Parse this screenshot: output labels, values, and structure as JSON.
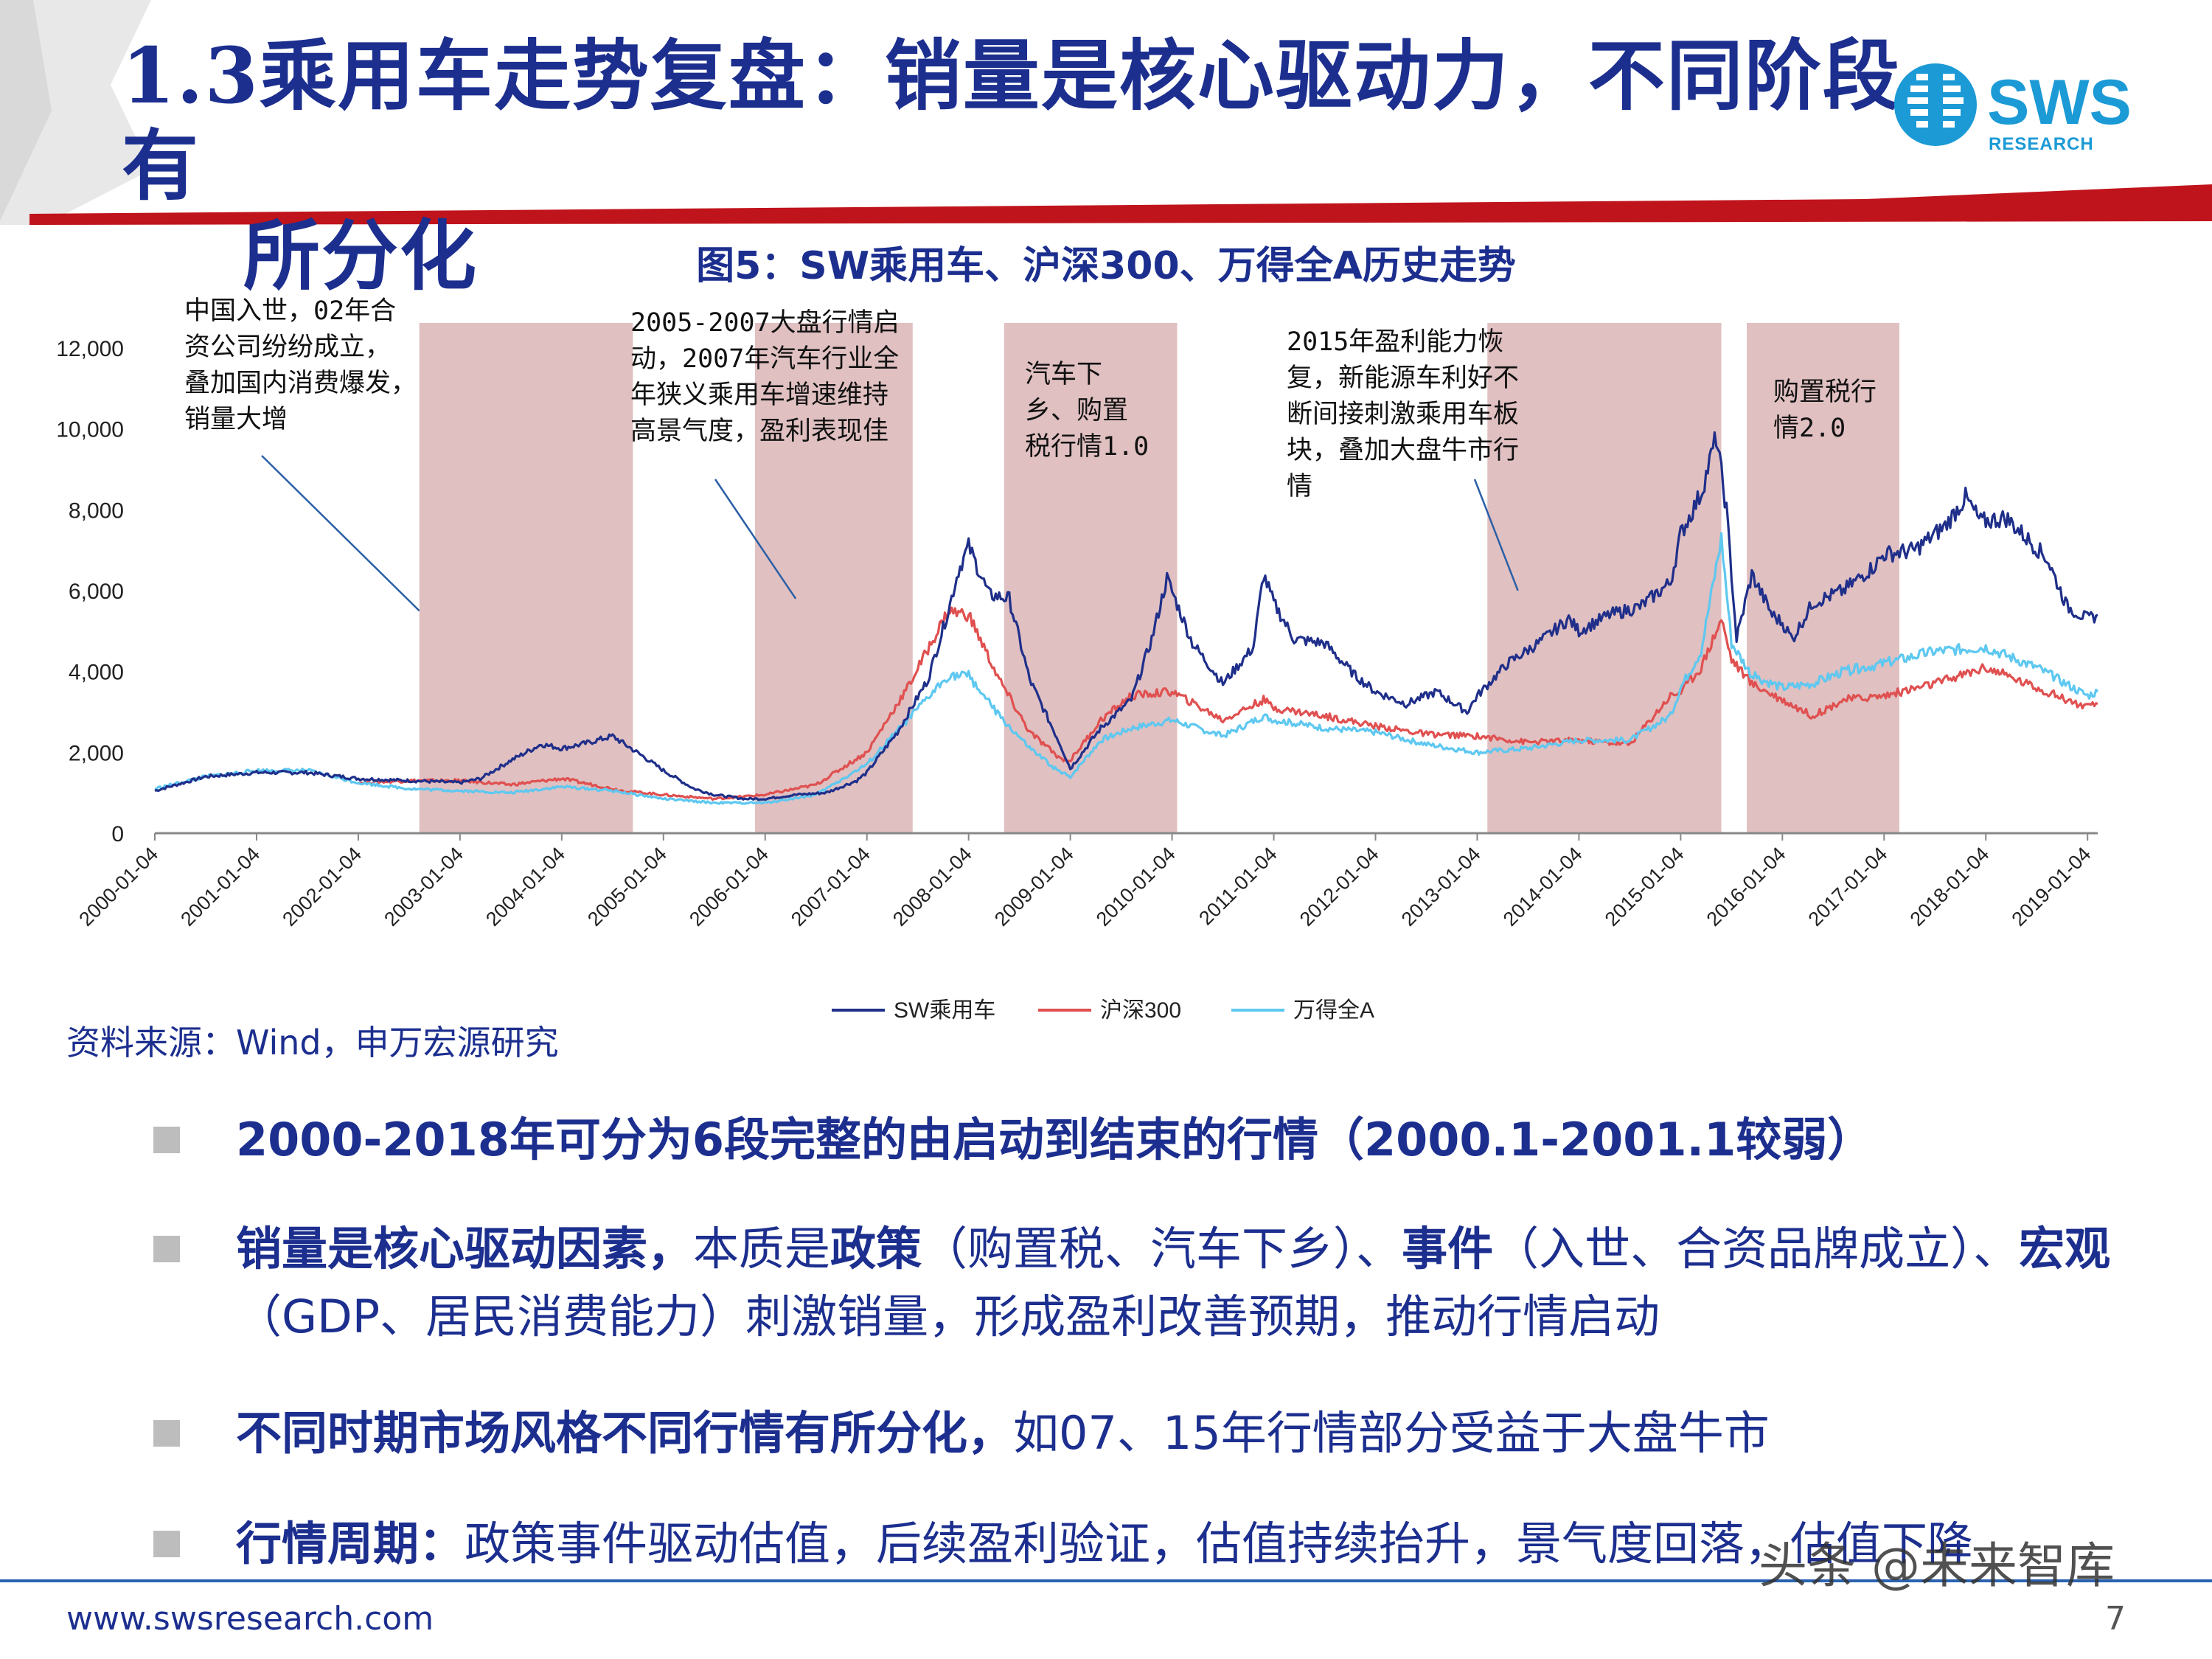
{
  "header": {
    "title_line1": "1.3乘用车走势复盘：销量是核心驱动力，不同阶段有",
    "title_line2": "所分化",
    "brand_colors": {
      "navy": "#1c2f8f",
      "red": "#c0141c",
      "logo_blue": "#1b9ad6"
    }
  },
  "logo": {
    "word": "SWS",
    "sub": "RESEARCH"
  },
  "figure_title": "图5：SW乘用车、沪深300、万得全A历史走势",
  "chart_data": {
    "type": "line",
    "title": "图5：SW乘用车、沪深300、万得全A历史走势",
    "ylim": [
      0,
      12000
    ],
    "y_ticks": [
      "0",
      "2,000",
      "4,000",
      "6,000",
      "8,000",
      "10,000",
      "12,000"
    ],
    "x_ticks": [
      "2000-01-04",
      "2001-01-04",
      "2002-01-04",
      "2003-01-04",
      "2004-01-04",
      "2005-01-04",
      "2006-01-04",
      "2007-01-04",
      "2008-01-04",
      "2009-01-04",
      "2010-01-04",
      "2011-01-04",
      "2012-01-04",
      "2013-01-04",
      "2014-01-04",
      "2015-01-04",
      "2016-01-04",
      "2017-01-04",
      "2018-01-04",
      "2019-01-04"
    ],
    "grid": false,
    "legend_position": "bottom",
    "series": [
      {
        "name": "SW乘用车",
        "color": "#1f2f8a",
        "x": [
          2000.0,
          2000.5,
          2001.0,
          2001.5,
          2002.0,
          2002.5,
          2003.0,
          2003.2,
          2003.5,
          2003.8,
          2004.0,
          2004.2,
          2004.5,
          2004.8,
          2005.0,
          2005.3,
          2005.5,
          2005.8,
          2006.0,
          2006.3,
          2006.6,
          2006.9,
          2007.0,
          2007.3,
          2007.6,
          2007.8,
          2007.9,
          2008.0,
          2008.2,
          2008.4,
          2008.6,
          2008.9,
          2009.0,
          2009.3,
          2009.6,
          2009.8,
          2009.95,
          2010.2,
          2010.5,
          2010.8,
          2010.9,
          2011.0,
          2011.2,
          2011.5,
          2011.8,
          2012.0,
          2012.3,
          2012.6,
          2012.9,
          2013.0,
          2013.3,
          2013.6,
          2013.9,
          2014.0,
          2014.3,
          2014.6,
          2014.9,
          2015.0,
          2015.2,
          2015.35,
          2015.45,
          2015.55,
          2015.7,
          2015.9,
          2016.0,
          2016.1,
          2016.3,
          2016.6,
          2016.9,
          2017.0,
          2017.3,
          2017.6,
          2017.8,
          2017.95,
          2018.2,
          2018.4,
          2018.6,
          2018.8,
          2019.0,
          2019.1
        ],
        "y": [
          1050,
          1400,
          1500,
          1500,
          1350,
          1300,
          1250,
          1350,
          1800,
          2200,
          2100,
          2200,
          2400,
          1900,
          1550,
          1100,
          950,
          850,
          850,
          950,
          1000,
          1300,
          1500,
          2500,
          3800,
          5500,
          6500,
          7100,
          5900,
          5800,
          3800,
          2200,
          1600,
          2600,
          3300,
          4800,
          6300,
          4700,
          3700,
          4600,
          6400,
          5700,
          4800,
          4700,
          3900,
          3500,
          3200,
          3500,
          3000,
          3400,
          4200,
          4700,
          5300,
          5000,
          5400,
          5600,
          6200,
          7400,
          8400,
          9800,
          8000,
          4800,
          6400,
          5400,
          5200,
          4800,
          5700,
          6000,
          6600,
          6900,
          7000,
          7600,
          8300,
          7700,
          7800,
          7300,
          6800,
          5600,
          5300,
          5400
        ]
      },
      {
        "name": "沪深300",
        "color": "#e05050",
        "x": [
          2002.0,
          2002.5,
          2003.0,
          2003.5,
          2004.0,
          2004.3,
          2004.6,
          2005.0,
          2005.5,
          2006.0,
          2006.5,
          2007.0,
          2007.4,
          2007.8,
          2008.0,
          2008.3,
          2008.6,
          2008.9,
          2009.0,
          2009.3,
          2009.6,
          2010.0,
          2010.5,
          2010.9,
          2011.0,
          2011.5,
          2012.0,
          2012.5,
          2013.0,
          2013.5,
          2014.0,
          2014.5,
          2014.9,
          2015.0,
          2015.2,
          2015.4,
          2015.5,
          2015.7,
          2016.0,
          2016.3,
          2016.6,
          2017.0,
          2017.5,
          2018.0,
          2018.5,
          2019.0,
          2019.1
        ],
        "y": [
          1250,
          1300,
          1300,
          1200,
          1350,
          1200,
          1050,
          950,
          850,
          950,
          1200,
          2000,
          3600,
          5500,
          5400,
          3800,
          2500,
          1850,
          1800,
          2800,
          3400,
          3500,
          2800,
          3300,
          3100,
          2900,
          2650,
          2450,
          2400,
          2250,
          2300,
          2200,
          3400,
          3500,
          4100,
          5300,
          4300,
          3700,
          3300,
          2900,
          3300,
          3400,
          3700,
          4100,
          3600,
          3100,
          3200
        ]
      },
      {
        "name": "万得全A",
        "color": "#5ec8f0",
        "x": [
          2000.0,
          2000.5,
          2001.0,
          2001.5,
          2002.0,
          2002.5,
          2003.0,
          2003.5,
          2004.0,
          2004.5,
          2005.0,
          2005.5,
          2006.0,
          2006.5,
          2007.0,
          2007.4,
          2007.8,
          2008.0,
          2008.3,
          2008.6,
          2008.9,
          2009.0,
          2009.3,
          2009.6,
          2010.0,
          2010.5,
          2010.9,
          2011.0,
          2011.5,
          2012.0,
          2012.5,
          2013.0,
          2013.5,
          2014.0,
          2014.5,
          2014.9,
          2015.0,
          2015.2,
          2015.4,
          2015.5,
          2015.7,
          2016.0,
          2016.3,
          2016.6,
          2017.0,
          2017.5,
          2018.0,
          2018.5,
          2019.0,
          2019.1
        ],
        "y": [
          1100,
          1400,
          1550,
          1550,
          1250,
          1100,
          1050,
          1000,
          1150,
          1050,
          850,
          750,
          750,
          950,
          1700,
          2800,
          3900,
          3900,
          2900,
          2100,
          1500,
          1400,
          2300,
          2600,
          2800,
          2400,
          2900,
          2800,
          2600,
          2500,
          2200,
          2000,
          2100,
          2300,
          2300,
          2900,
          3600,
          4500,
          7300,
          4700,
          3900,
          3600,
          3700,
          4000,
          4200,
          4500,
          4600,
          4100,
          3400,
          3500
        ]
      }
    ],
    "highlight_periods": [
      [
        2002.6,
        2004.7
      ],
      [
        2005.9,
        2007.45
      ],
      [
        2008.35,
        2010.05
      ],
      [
        2013.1,
        2015.4
      ],
      [
        2015.65,
        2017.15
      ]
    ],
    "annotations": [
      {
        "text": "中国入世，02年合\n资公司纷纷成立，\n叠加国内消费爆发，\n销量大增",
        "point_x": 2002.6,
        "point_y": 5500
      },
      {
        "text": "2005-2007大盘行情启\n动，2007年汽车行业全\n年狭义乘用车增速维持\n高景气度，盈利表现佳",
        "point_x": 2006.3,
        "point_y": 5800
      },
      {
        "text": "汽车下\n乡、购置\n税行情1.0",
        "point_x": null,
        "point_y": null
      },
      {
        "text": "2015年盈利能力恢\n复，新能源车利好不\n断间接刺激乘用车板\n块，叠加大盘牛市行\n情",
        "point_x": 2013.4,
        "point_y": 6000
      },
      {
        "text": "购置税行\n情2.0",
        "point_x": null,
        "point_y": null
      }
    ]
  },
  "source_note": "资料来源：Wind，申万宏源研究",
  "bullets": [
    {
      "bold": "2000-2018年可分为6段完整的由启动到结束的行情（2000.1-2001.1较弱）",
      "rest": ""
    },
    {
      "bold": "销量是核心驱动因素，",
      "rest": "本质是",
      "bold2": "政策",
      "rest2": "（购置税、汽车下乡）、",
      "bold3": "事件",
      "rest3": "（入世、合资品牌成立）、",
      "bold4": "宏观",
      "rest4": "（GDP、居民消费能力）刺激销量，形成盈利改善预期，推动行情启动"
    },
    {
      "bold": "不同时期市场风格不同行情有所分化，",
      "rest": "如07、15年行情部分受益于大盘牛市"
    },
    {
      "bold": "行情周期：",
      "rest": "政策事件驱动估值，后续盈利验证，估值持续抬升，景气度回落，估值下降"
    }
  ],
  "footer": {
    "url": "www.swsresearch.com",
    "page": "7",
    "watermark": "头条 @未来智库"
  }
}
